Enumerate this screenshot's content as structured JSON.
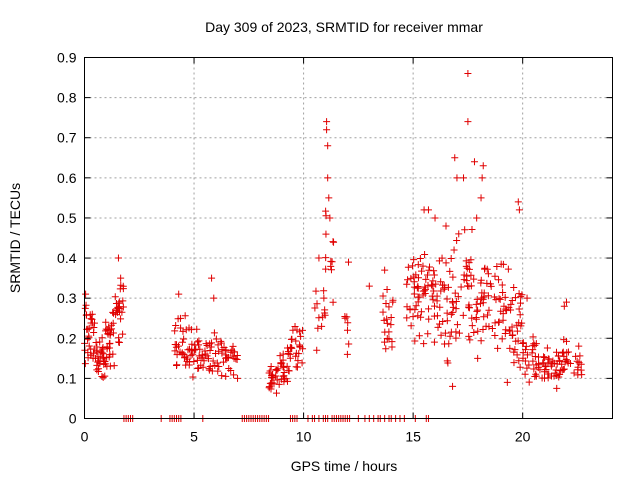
{
  "chart_data": {
    "type": "scatter",
    "title": "Day 309 of 2023, SRMTID for receiver mmar",
    "xlabel": "GPS time / hours",
    "ylabel": "SRMTID / TECUs",
    "xlim": [
      0,
      24.1
    ],
    "ylim": [
      0,
      0.9
    ],
    "xticks": [
      0,
      5,
      10,
      15,
      20
    ],
    "yticks": [
      0,
      0.1,
      0.2,
      0.3,
      0.4,
      0.5,
      0.6,
      0.7,
      0.8,
      0.9
    ],
    "x_tick_labels": [
      "0",
      "5",
      "10",
      "15",
      "20"
    ],
    "y_tick_labels": [
      "0",
      "0.1",
      "0.2",
      "0.3",
      "0.4",
      "0.5",
      "0.6",
      "0.7",
      "0.8",
      "0.9"
    ],
    "grid": true,
    "marker": "+",
    "color": "#e00000",
    "clusters": [
      {
        "x": [
          0.0,
          0.45
        ],
        "y": [
          0.1,
          0.3
        ],
        "n": 30
      },
      {
        "x": [
          0.45,
          0.95
        ],
        "y": [
          0.08,
          0.25
        ],
        "n": 30
      },
      {
        "x": [
          0.95,
          1.4
        ],
        "y": [
          0.12,
          0.28
        ],
        "n": 30
      },
      {
        "x": [
          1.4,
          1.8
        ],
        "y": [
          0.18,
          0.35
        ],
        "n": 25
      },
      {
        "x": [
          4.1,
          4.6
        ],
        "y": [
          0.12,
          0.27
        ],
        "n": 22
      },
      {
        "x": [
          4.6,
          5.2
        ],
        "y": [
          0.1,
          0.24
        ],
        "n": 25
      },
      {
        "x": [
          5.2,
          5.7
        ],
        "y": [
          0.1,
          0.2
        ],
        "n": 18
      },
      {
        "x": [
          5.7,
          6.3
        ],
        "y": [
          0.1,
          0.22
        ],
        "n": 22
      },
      {
        "x": [
          6.3,
          7.0
        ],
        "y": [
          0.09,
          0.2
        ],
        "n": 24
      },
      {
        "x": [
          8.4,
          8.9
        ],
        "y": [
          0.06,
          0.14
        ],
        "n": 22
      },
      {
        "x": [
          8.9,
          9.4
        ],
        "y": [
          0.07,
          0.2
        ],
        "n": 25
      },
      {
        "x": [
          9.4,
          10.0
        ],
        "y": [
          0.1,
          0.24
        ],
        "n": 22
      },
      {
        "x": [
          10.5,
          11.0
        ],
        "y": [
          0.18,
          0.38
        ],
        "n": 12
      },
      {
        "x": [
          11.0,
          11.4
        ],
        "y": [
          0.28,
          0.55
        ],
        "n": 12
      },
      {
        "x": [
          11.8,
          12.1
        ],
        "y": [
          0.13,
          0.32
        ],
        "n": 6
      },
      {
        "x": [
          13.6,
          14.1
        ],
        "y": [
          0.12,
          0.35
        ],
        "n": 20
      },
      {
        "x": [
          14.7,
          15.3
        ],
        "y": [
          0.18,
          0.44
        ],
        "n": 30
      },
      {
        "x": [
          15.3,
          16.1
        ],
        "y": [
          0.16,
          0.46
        ],
        "n": 35
      },
      {
        "x": [
          16.1,
          16.9
        ],
        "y": [
          0.13,
          0.45
        ],
        "n": 35
      },
      {
        "x": [
          16.9,
          17.7
        ],
        "y": [
          0.15,
          0.5
        ],
        "n": 35
      },
      {
        "x": [
          17.7,
          18.6
        ],
        "y": [
          0.14,
          0.45
        ],
        "n": 35
      },
      {
        "x": [
          18.6,
          19.4
        ],
        "y": [
          0.14,
          0.42
        ],
        "n": 30
      },
      {
        "x": [
          19.4,
          20.0
        ],
        "y": [
          0.1,
          0.36
        ],
        "n": 30
      },
      {
        "x": [
          20.0,
          20.8
        ],
        "y": [
          0.08,
          0.22
        ],
        "n": 30
      },
      {
        "x": [
          20.8,
          21.6
        ],
        "y": [
          0.07,
          0.19
        ],
        "n": 30
      },
      {
        "x": [
          21.6,
          22.7
        ],
        "y": [
          0.08,
          0.2
        ],
        "n": 35
      }
    ],
    "points": [
      {
        "x": 1.55,
        "y": 0.4
      },
      {
        "x": 1.65,
        "y": 0.35
      },
      {
        "x": 0.05,
        "y": 0.31
      },
      {
        "x": 4.3,
        "y": 0.31
      },
      {
        "x": 5.8,
        "y": 0.35
      },
      {
        "x": 5.9,
        "y": 0.3
      },
      {
        "x": 11.05,
        "y": 0.74
      },
      {
        "x": 11.05,
        "y": 0.72
      },
      {
        "x": 11.1,
        "y": 0.68
      },
      {
        "x": 11.1,
        "y": 0.6
      },
      {
        "x": 11.15,
        "y": 0.55
      },
      {
        "x": 11.2,
        "y": 0.5
      },
      {
        "x": 10.7,
        "y": 0.4
      },
      {
        "x": 12.05,
        "y": 0.39
      },
      {
        "x": 12.0,
        "y": 0.16
      },
      {
        "x": 10.6,
        "y": 0.17
      },
      {
        "x": 13.0,
        "y": 0.33
      },
      {
        "x": 13.7,
        "y": 0.37
      },
      {
        "x": 17.5,
        "y": 0.86
      },
      {
        "x": 17.5,
        "y": 0.74
      },
      {
        "x": 17.8,
        "y": 0.64
      },
      {
        "x": 16.9,
        "y": 0.65
      },
      {
        "x": 17.0,
        "y": 0.6
      },
      {
        "x": 17.3,
        "y": 0.6
      },
      {
        "x": 18.15,
        "y": 0.6
      },
      {
        "x": 18.1,
        "y": 0.55
      },
      {
        "x": 19.8,
        "y": 0.54
      },
      {
        "x": 19.85,
        "y": 0.52
      },
      {
        "x": 16.0,
        "y": 0.5
      },
      {
        "x": 15.7,
        "y": 0.52
      },
      {
        "x": 18.2,
        "y": 0.63
      },
      {
        "x": 17.9,
        "y": 0.5
      },
      {
        "x": 16.8,
        "y": 0.08
      },
      {
        "x": 19.3,
        "y": 0.09
      },
      {
        "x": 22.0,
        "y": 0.29
      },
      {
        "x": 21.9,
        "y": 0.28
      },
      {
        "x": 20.2,
        "y": 0.3
      },
      {
        "x": 15.5,
        "y": 0.52
      },
      {
        "x": 16.5,
        "y": 0.48
      }
    ],
    "zero_x": [
      1.8,
      1.9,
      2.0,
      2.1,
      2.2,
      3.5,
      3.9,
      4.0,
      4.1,
      4.2,
      4.3,
      4.4,
      5.4,
      7.2,
      7.3,
      7.4,
      7.5,
      7.6,
      7.7,
      7.8,
      7.9,
      8.0,
      8.1,
      8.2,
      8.3,
      8.4,
      9.4,
      9.5,
      9.6,
      9.7,
      10.2,
      10.4,
      10.5,
      10.7,
      10.9,
      11.0,
      11.1,
      11.3,
      11.4,
      11.5,
      11.6,
      11.7,
      11.8,
      11.9,
      12.0,
      12.1,
      12.5,
      12.8,
      13.0,
      13.2,
      13.4,
      13.5,
      13.7,
      13.9,
      14.0,
      14.2,
      14.4,
      14.6,
      15.1,
      15.6,
      15.7
    ]
  }
}
